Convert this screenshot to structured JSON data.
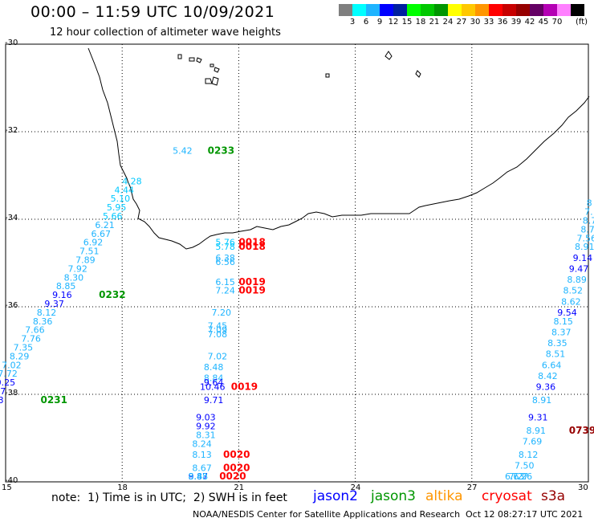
{
  "title": "00:00 – 11:59 UTC 10/09/2021",
  "subtitle": "12 hour collection of altimeter wave heights",
  "legend": {
    "unit": "(ft)",
    "swatches": [
      "#7f7f7f",
      "#00ffff",
      "#1eb4ff",
      "#0000ff",
      "#0020a0",
      "#00ff00",
      "#00c800",
      "#009600",
      "#ffff00",
      "#ffc800",
      "#ff9600",
      "#ff0000",
      "#c80000",
      "#960000",
      "#640064",
      "#b400b4",
      "#ff80ff",
      "#000000"
    ],
    "labels": [
      "3",
      "6",
      "9",
      "12",
      "15",
      "18",
      "21",
      "24",
      "27",
      "30",
      "33",
      "36",
      "39",
      "42",
      "45",
      "70"
    ]
  },
  "axes": {
    "lon_ticks": [
      "15",
      "18",
      "21",
      "24",
      "27",
      "30"
    ],
    "lat_ticks": [
      "-30",
      "-32",
      "-34",
      "-36",
      "-38",
      "-40"
    ]
  },
  "note": "note:  1) Time is in UTC;  2) SWH is in feet",
  "satellites": [
    {
      "name": "jason2",
      "color": "#0000ff"
    },
    {
      "name": "jason3",
      "color": "#009600"
    },
    {
      "name": "altika",
      "color": "#ff9600"
    },
    {
      "name": "cryosat",
      "color": "#ff0000"
    },
    {
      "name": "s3a",
      "color": "#960000"
    }
  ],
  "credit": "NOAA/NESDIS Center for Satellite Applications and Research",
  "timestamp": "Oct 12 08:27:17 UTC 2021",
  "wave_labels": [
    {
      "v": "5.42",
      "c": "#1eb4ff",
      "lon": 19.3,
      "lat": -32.5
    },
    {
      "v": "0233",
      "c": "#009600",
      "lon": 20.2,
      "lat": -32.5,
      "time": true
    },
    {
      "v": "4.28",
      "c": "#00c8ff",
      "lon": 18.0,
      "lat": -33.2
    },
    {
      "v": "4.44",
      "c": "#00c8ff",
      "lon": 17.8,
      "lat": -33.4
    },
    {
      "v": "5.10",
      "c": "#00c8ff",
      "lon": 17.7,
      "lat": -33.6
    },
    {
      "v": "5.95",
      "c": "#00c8ff",
      "lon": 17.6,
      "lat": -33.8
    },
    {
      "v": "5.66",
      "c": "#00c8ff",
      "lon": 17.5,
      "lat": -34.0
    },
    {
      "v": "6.21",
      "c": "#1eb4ff",
      "lon": 17.3,
      "lat": -34.2
    },
    {
      "v": "6.67",
      "c": "#1eb4ff",
      "lon": 17.2,
      "lat": -34.4
    },
    {
      "v": "6.92",
      "c": "#1eb4ff",
      "lon": 17.0,
      "lat": -34.6
    },
    {
      "v": "7.51",
      "c": "#1eb4ff",
      "lon": 16.9,
      "lat": -34.8
    },
    {
      "v": "7.89",
      "c": "#1eb4ff",
      "lon": 16.8,
      "lat": -35.0
    },
    {
      "v": "7.92",
      "c": "#1eb4ff",
      "lon": 16.6,
      "lat": -35.2
    },
    {
      "v": "8.30",
      "c": "#1eb4ff",
      "lon": 16.5,
      "lat": -35.4
    },
    {
      "v": "8.85",
      "c": "#1eb4ff",
      "lon": 16.3,
      "lat": -35.6
    },
    {
      "v": "9.16",
      "c": "#0000ff",
      "lon": 16.2,
      "lat": -35.8
    },
    {
      "v": "0232",
      "c": "#009600",
      "lon": 17.4,
      "lat": -35.8,
      "time": true
    },
    {
      "v": "9.37",
      "c": "#0000ff",
      "lon": 16.0,
      "lat": -36.0
    },
    {
      "v": "8.12",
      "c": "#1eb4ff",
      "lon": 15.8,
      "lat": -36.2
    },
    {
      "v": "8.36",
      "c": "#1eb4ff",
      "lon": 15.7,
      "lat": -36.4
    },
    {
      "v": "7.66",
      "c": "#1eb4ff",
      "lon": 15.5,
      "lat": -36.6
    },
    {
      "v": "7.76",
      "c": "#1eb4ff",
      "lon": 15.4,
      "lat": -36.8
    },
    {
      "v": "7.35",
      "c": "#1eb4ff",
      "lon": 15.2,
      "lat": -37.0
    },
    {
      "v": "8.29",
      "c": "#1eb4ff",
      "lon": 15.1,
      "lat": -37.2
    },
    {
      "v": "7.02",
      "c": "#1eb4ff",
      "lon": 14.9,
      "lat": -37.4
    },
    {
      "v": "7.72",
      "c": "#1eb4ff",
      "lon": 14.8,
      "lat": -37.6
    },
    {
      "v": "10.25",
      "c": "#0000ff",
      "lon": 14.6,
      "lat": -37.8
    },
    {
      "v": "9.47",
      "c": "#0000ff",
      "lon": 14.5,
      "lat": -38.0
    },
    {
      "v": "0231",
      "c": "#009600",
      "lon": 15.9,
      "lat": -38.2,
      "time": true
    },
    {
      "v": "10.03",
      "c": "#0000ff",
      "lon": 14.3,
      "lat": -38.2
    },
    {
      "v": "5.76",
      "c": "#00c8ff",
      "lon": 20.4,
      "lat": -34.6
    },
    {
      "v": "0018",
      "c": "#ff0000",
      "lon": 21.0,
      "lat": -34.6,
      "time": true
    },
    {
      "v": "5.78",
      "c": "#00c8ff",
      "lon": 20.4,
      "lat": -34.7
    },
    {
      "v": "0018",
      "c": "#ff0000",
      "lon": 21.0,
      "lat": -34.7,
      "time": true
    },
    {
      "v": "6.38",
      "c": "#1eb4ff",
      "lon": 20.4,
      "lat": -34.95
    },
    {
      "v": "6.56",
      "c": "#1eb4ff",
      "lon": 20.4,
      "lat": -35.05
    },
    {
      "v": "6.15",
      "c": "#1eb4ff",
      "lon": 20.4,
      "lat": -35.5
    },
    {
      "v": "0019",
      "c": "#ff0000",
      "lon": 21.0,
      "lat": -35.5,
      "time": true
    },
    {
      "v": "7.24",
      "c": "#1eb4ff",
      "lon": 20.4,
      "lat": -35.7
    },
    {
      "v": "0019",
      "c": "#ff0000",
      "lon": 21.0,
      "lat": -35.7,
      "time": true
    },
    {
      "v": "7.20",
      "c": "#1eb4ff",
      "lon": 20.3,
      "lat": -36.2
    },
    {
      "v": "7.45",
      "c": "#1eb4ff",
      "lon": 20.2,
      "lat": -36.5
    },
    {
      "v": "7.09",
      "c": "#1eb4ff",
      "lon": 20.2,
      "lat": -36.6
    },
    {
      "v": "7.08",
      "c": "#1eb4ff",
      "lon": 20.2,
      "lat": -36.7
    },
    {
      "v": "7.02",
      "c": "#1eb4ff",
      "lon": 20.2,
      "lat": -37.2
    },
    {
      "v": "8.48",
      "c": "#1eb4ff",
      "lon": 20.1,
      "lat": -37.45
    },
    {
      "v": "8.84",
      "c": "#1eb4ff",
      "lon": 20.1,
      "lat": -37.7
    },
    {
      "v": "9.64",
      "c": "#0000ff",
      "lon": 20.1,
      "lat": -37.8
    },
    {
      "v": "10.46",
      "c": "#0000ff",
      "lon": 20.0,
      "lat": -37.9
    },
    {
      "v": "0019",
      "c": "#ff0000",
      "lon": 20.8,
      "lat": -37.9,
      "time": true
    },
    {
      "v": "9.71",
      "c": "#0000ff",
      "lon": 20.1,
      "lat": -38.2
    },
    {
      "v": "9.03",
      "c": "#0000ff",
      "lon": 19.9,
      "lat": -38.6
    },
    {
      "v": "9.92",
      "c": "#0000ff",
      "lon": 19.9,
      "lat": -38.8
    },
    {
      "v": "8.31",
      "c": "#1eb4ff",
      "lon": 19.9,
      "lat": -39.0
    },
    {
      "v": "8.24",
      "c": "#1eb4ff",
      "lon": 19.8,
      "lat": -39.2
    },
    {
      "v": "8.13",
      "c": "#1eb4ff",
      "lon": 19.8,
      "lat": -39.45
    },
    {
      "v": "0020",
      "c": "#ff0000",
      "lon": 20.6,
      "lat": -39.45,
      "time": true
    },
    {
      "v": "8.67",
      "c": "#1eb4ff",
      "lon": 19.8,
      "lat": -39.75
    },
    {
      "v": "0020",
      "c": "#ff0000",
      "lon": 20.6,
      "lat": -39.75,
      "time": true
    },
    {
      "v": "9.87",
      "c": "#0000ff",
      "lon": 19.7,
      "lat": -40.05
    },
    {
      "v": "8.83",
      "c": "#1eb4ff",
      "lon": 19.7,
      "lat": -40.2
    },
    {
      "v": "0020",
      "c": "#ff0000",
      "lon": 20.5,
      "lat": -40.2,
      "time": true
    },
    {
      "v": "8.48",
      "c": "#1eb4ff",
      "lon": 19.7,
      "lat": -40.5
    },
    {
      "v": "8",
      "c": "#1eb4ff",
      "lon": 29.95,
      "lat": -33.7
    },
    {
      "v": "7.",
      "c": "#1eb4ff",
      "lon": 29.9,
      "lat": -33.9
    },
    {
      "v": "8.7",
      "c": "#1eb4ff",
      "lon": 29.85,
      "lat": -34.1
    },
    {
      "v": "8.7",
      "c": "#1eb4ff",
      "lon": 29.8,
      "lat": -34.3
    },
    {
      "v": "7.56",
      "c": "#1eb4ff",
      "lon": 29.7,
      "lat": -34.5
    },
    {
      "v": "8.91",
      "c": "#1eb4ff",
      "lon": 29.65,
      "lat": -34.7
    },
    {
      "v": "9.14",
      "c": "#0000ff",
      "lon": 29.6,
      "lat": -34.95
    },
    {
      "v": "9.47",
      "c": "#0000ff",
      "lon": 29.5,
      "lat": -35.2
    },
    {
      "v": "8.89",
      "c": "#1eb4ff",
      "lon": 29.45,
      "lat": -35.45
    },
    {
      "v": "8.52",
      "c": "#1eb4ff",
      "lon": 29.35,
      "lat": -35.7
    },
    {
      "v": "8.62",
      "c": "#1eb4ff",
      "lon": 29.3,
      "lat": -35.95
    },
    {
      "v": "9.54",
      "c": "#0000ff",
      "lon": 29.2,
      "lat": -36.2
    },
    {
      "v": "8.15",
      "c": "#1eb4ff",
      "lon": 29.1,
      "lat": -36.4
    },
    {
      "v": "8.37",
      "c": "#1eb4ff",
      "lon": 29.05,
      "lat": -36.65
    },
    {
      "v": "8.35",
      "c": "#1eb4ff",
      "lon": 28.95,
      "lat": -36.9
    },
    {
      "v": "8.51",
      "c": "#1eb4ff",
      "lon": 28.9,
      "lat": -37.15
    },
    {
      "v": "6.64",
      "c": "#1eb4ff",
      "lon": 28.8,
      "lat": -37.4
    },
    {
      "v": "8.42",
      "c": "#1eb4ff",
      "lon": 28.7,
      "lat": -37.65
    },
    {
      "v": "9.36",
      "c": "#0000ff",
      "lon": 28.65,
      "lat": -37.9
    },
    {
      "v": "8.91",
      "c": "#1eb4ff",
      "lon": 28.55,
      "lat": -38.2
    },
    {
      "v": "9.31",
      "c": "#0000ff",
      "lon": 28.45,
      "lat": -38.6
    },
    {
      "v": "8.91",
      "c": "#1eb4ff",
      "lon": 28.4,
      "lat": -38.9
    },
    {
      "v": "0739",
      "c": "#960000",
      "lon": 29.5,
      "lat": -38.9,
      "time": true
    },
    {
      "v": "7.69",
      "c": "#1eb4ff",
      "lon": 28.3,
      "lat": -39.15
    },
    {
      "v": "8.12",
      "c": "#1eb4ff",
      "lon": 28.2,
      "lat": -39.45
    },
    {
      "v": "7.50",
      "c": "#1eb4ff",
      "lon": 28.1,
      "lat": -39.7
    },
    {
      "v": "7.26",
      "c": "#1eb4ff",
      "lon": 28.05,
      "lat": -39.95
    },
    {
      "v": "7.27",
      "c": "#1eb4ff",
      "lon": 27.95,
      "lat": -40.25
    },
    {
      "v": "6.63",
      "c": "#1eb4ff",
      "lon": 27.85,
      "lat": -40.5
    }
  ]
}
